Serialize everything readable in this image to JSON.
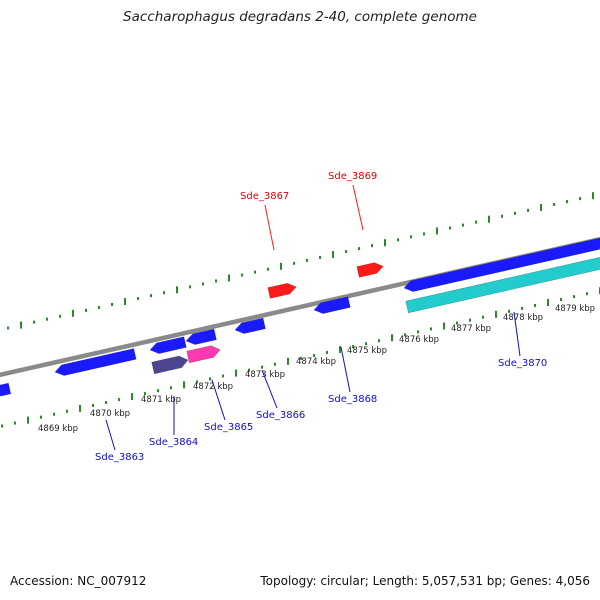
{
  "title": "Saccharophagus degradans 2-40, complete genome",
  "footer": {
    "accession": "Accession: NC_007912",
    "summary": "Topology: circular; Length: 5,057,531 bp; Genes: 4,056"
  },
  "colors": {
    "backbone": "#888888",
    "tick": "#2a8a2a",
    "forward_gene": "#ff1a1a",
    "reverse_gene": "#1a1aff",
    "cyan_gene": "#22cccc",
    "pink_gene": "#ff3ab0",
    "purple_gene": "#4c4690",
    "forward_label": "#dd0000",
    "reverse_label": "#1010c8"
  },
  "kbp_labels": [
    "4869 kbp",
    "4870 kbp",
    "4871 kbp",
    "4872 kbp",
    "4873 kbp",
    "4874 kbp",
    "4875 kbp",
    "4876 kbp",
    "4877 kbp",
    "4878 kbp",
    "4879 kbp"
  ],
  "genes": {
    "forward": [
      "Sde_3867",
      "Sde_3869"
    ],
    "reverse": [
      "Sde_3863",
      "Sde_3864",
      "Sde_3865",
      "Sde_3866",
      "Sde_3868",
      "Sde_3870"
    ]
  }
}
